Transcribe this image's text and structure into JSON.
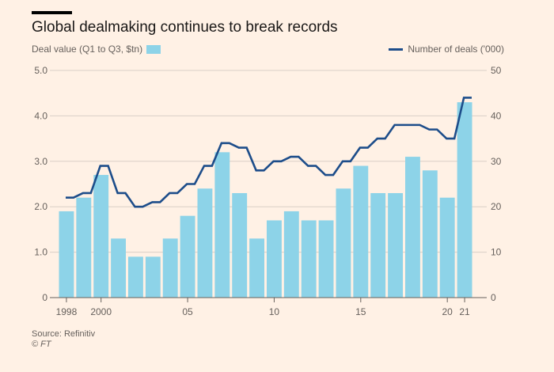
{
  "header": {
    "title": "Global dealmaking continues to break records"
  },
  "legend": {
    "bars_label": "Deal value (Q1 to Q3, $tn)",
    "line_label": "Number of deals ('000)"
  },
  "footer": {
    "source": "Source: Refinitiv",
    "copyright": "© FT"
  },
  "colors": {
    "background": "#fff1e5",
    "bar": "#8dd3e8",
    "line": "#1d4d8a",
    "grid": "#d9cfc6"
  },
  "chart_data": {
    "type": "bar",
    "title": "Global dealmaking continues to break records",
    "years": [
      1998,
      1999,
      2000,
      2001,
      2002,
      2003,
      2004,
      2005,
      2006,
      2007,
      2008,
      2009,
      2010,
      2011,
      2012,
      2013,
      2014,
      2015,
      2016,
      2017,
      2018,
      2019,
      2020,
      2021
    ],
    "x_tick_labels": [
      {
        "year": 1998,
        "label": "1998"
      },
      {
        "year": 2000,
        "label": "2000"
      },
      {
        "year": 2005,
        "label": "05"
      },
      {
        "year": 2010,
        "label": "10"
      },
      {
        "year": 2015,
        "label": "15"
      },
      {
        "year": 2020,
        "label": "20"
      },
      {
        "year": 2021,
        "label": "21"
      }
    ],
    "series": [
      {
        "name": "Deal value (Q1 to Q3, $tn)",
        "type": "bar",
        "axis": "left",
        "values": [
          1.9,
          2.2,
          2.7,
          1.3,
          0.9,
          0.9,
          1.3,
          1.8,
          2.4,
          3.2,
          2.3,
          1.3,
          1.7,
          1.9,
          1.7,
          1.7,
          2.4,
          2.9,
          2.3,
          2.3,
          3.1,
          2.8,
          2.2,
          4.3
        ]
      },
      {
        "name": "Number of deals ('000)",
        "type": "step-line",
        "axis": "right",
        "values": [
          22,
          23,
          29,
          23,
          20,
          21,
          23,
          25,
          29,
          34,
          33,
          28,
          30,
          31,
          29,
          27,
          30,
          33,
          35,
          38,
          38,
          37,
          35,
          44
        ]
      }
    ],
    "y_left": {
      "min": 0,
      "max": 5,
      "ticks": [
        "0",
        "1.0",
        "2.0",
        "3.0",
        "4.0",
        "5.0"
      ]
    },
    "y_right": {
      "min": 0,
      "max": 50,
      "ticks": [
        "0",
        "10",
        "20",
        "30",
        "40",
        "50"
      ]
    },
    "grid": true,
    "legend_placement": "top"
  }
}
